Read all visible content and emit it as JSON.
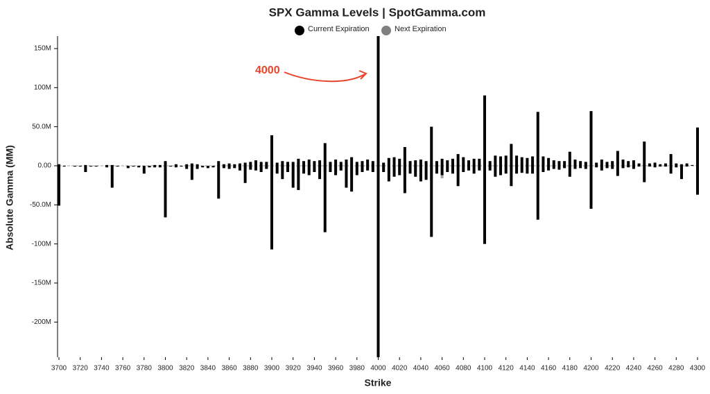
{
  "chart_data": {
    "type": "bar",
    "title": "SPX Gamma Levels | SpotGamma.com",
    "x_label": "Strike",
    "y_label": "Absolute Gamma (MM)",
    "annotation": "4000",
    "annotation_color": "#e8442c",
    "x": [
      3700,
      3705,
      3710,
      3715,
      3720,
      3725,
      3730,
      3735,
      3740,
      3745,
      3750,
      3755,
      3760,
      3765,
      3770,
      3775,
      3780,
      3785,
      3790,
      3795,
      3800,
      3805,
      3810,
      3815,
      3820,
      3825,
      3830,
      3835,
      3840,
      3845,
      3850,
      3855,
      3860,
      3865,
      3870,
      3875,
      3880,
      3885,
      3890,
      3895,
      3900,
      3905,
      3910,
      3915,
      3920,
      3925,
      3930,
      3935,
      3940,
      3945,
      3950,
      3955,
      3960,
      3965,
      3970,
      3975,
      3980,
      3985,
      3990,
      3995,
      4000,
      4005,
      4010,
      4015,
      4020,
      4025,
      4030,
      4035,
      4040,
      4045,
      4050,
      4055,
      4060,
      4065,
      4070,
      4075,
      4080,
      4085,
      4090,
      4095,
      4100,
      4105,
      4110,
      4115,
      4120,
      4125,
      4130,
      4135,
      4140,
      4145,
      4150,
      4155,
      4160,
      4165,
      4170,
      4175,
      4180,
      4185,
      4190,
      4195,
      4200,
      4205,
      4210,
      4215,
      4220,
      4225,
      4230,
      4235,
      4240,
      4245,
      4250,
      4255,
      4260,
      4265,
      4270,
      4275,
      4280,
      4285,
      4290,
      4295,
      4300
    ],
    "series": [
      {
        "name": "Current Expiration",
        "color": "#000000",
        "values": [
          2,
          0,
          0,
          0,
          0,
          1,
          0,
          0,
          0,
          1,
          1,
          0,
          0,
          0,
          0,
          0,
          0,
          0,
          1,
          1,
          6,
          0,
          2,
          0,
          2,
          3,
          2,
          0,
          0,
          0,
          6,
          2,
          3,
          2,
          3,
          4,
          5,
          7,
          5,
          5,
          39,
          4,
          6,
          5,
          5,
          9,
          6,
          8,
          6,
          7,
          29,
          5,
          8,
          5,
          8,
          11,
          5,
          6,
          8,
          6,
          166,
          4,
          10,
          11,
          9,
          24,
          6,
          7,
          8,
          6,
          50,
          6,
          9,
          7,
          9,
          15,
          11,
          7,
          9,
          9,
          90,
          6,
          13,
          12,
          13,
          28,
          13,
          11,
          10,
          12,
          69,
          12,
          10,
          7,
          6,
          6,
          18,
          8,
          6,
          5,
          70,
          4,
          8,
          5,
          6,
          19,
          8,
          6,
          7,
          3,
          31,
          3,
          4,
          2,
          3,
          15,
          3,
          2,
          3,
          1,
          49
        ],
        "negative_values": [
          -51,
          -1,
          0,
          -1,
          -1,
          -8,
          -1,
          -1,
          0,
          -2,
          -28,
          -1,
          0,
          -3,
          -1,
          -2,
          -10,
          -2,
          -2,
          -2,
          -66,
          -1,
          -2,
          -1,
          -4,
          -18,
          -4,
          -2,
          -3,
          -2,
          -42,
          -3,
          -4,
          -3,
          -6,
          -22,
          -5,
          -6,
          -8,
          -4,
          -107,
          -10,
          -17,
          -8,
          -28,
          -31,
          -10,
          -12,
          -8,
          -17,
          -85,
          -8,
          -12,
          -6,
          -28,
          -33,
          -12,
          -8,
          -6,
          -8,
          -245,
          -8,
          -20,
          -14,
          -12,
          -35,
          -10,
          -14,
          -20,
          -18,
          -91,
          -10,
          -12,
          -8,
          -10,
          -26,
          -8,
          -6,
          -10,
          -6,
          -100,
          -6,
          -14,
          -12,
          -10,
          -26,
          -10,
          -9,
          -10,
          -10,
          -69,
          -8,
          -6,
          -4,
          -5,
          -3,
          -14,
          -4,
          -3,
          -4,
          -55,
          -2,
          -6,
          -3,
          -4,
          -13,
          -3,
          -2,
          -4,
          -1,
          -21,
          -1,
          -2,
          -1,
          -1,
          -10,
          -2,
          -17,
          -1,
          0,
          -37
        ]
      },
      {
        "name": "Next Expiration",
        "color": "#a8a8a8",
        "values": [
          0,
          0,
          0,
          0,
          0,
          0,
          0,
          0,
          0,
          0,
          0,
          0,
          0,
          0,
          0,
          0,
          0,
          0,
          0,
          0,
          0,
          0,
          0,
          0,
          0,
          0,
          0,
          0,
          0,
          0,
          0,
          0,
          0,
          0,
          0,
          0,
          0,
          0,
          0,
          0,
          2,
          2,
          2,
          2,
          3,
          3,
          2,
          2,
          3,
          2,
          3,
          2,
          3,
          2,
          3,
          3,
          2,
          2,
          3,
          2,
          14,
          2,
          3,
          2,
          3,
          3,
          2,
          2,
          3,
          2,
          3,
          2,
          2,
          2,
          2,
          2,
          2,
          2,
          2,
          2,
          2,
          2,
          2,
          2,
          2,
          2,
          2,
          2,
          2,
          2,
          0,
          0,
          0,
          0,
          0,
          0,
          0,
          0,
          0,
          0,
          0,
          0,
          0,
          0,
          0,
          0,
          0,
          0,
          0,
          0,
          0,
          0,
          0,
          0,
          0,
          0,
          0,
          0,
          0,
          0,
          0
        ],
        "negative_values": [
          0,
          0,
          0,
          0,
          0,
          0,
          0,
          0,
          0,
          0,
          0,
          0,
          0,
          0,
          0,
          0,
          0,
          0,
          0,
          0,
          0,
          0,
          0,
          0,
          0,
          0,
          0,
          0,
          0,
          0,
          0,
          0,
          0,
          0,
          -2,
          -3,
          -3,
          -3,
          -4,
          -4,
          -6,
          -5,
          -6,
          -5,
          -18,
          -12,
          -8,
          -8,
          -6,
          -8,
          -8,
          -6,
          -8,
          -6,
          -22,
          -14,
          -8,
          -6,
          -5,
          -6,
          -27,
          -5,
          -8,
          -6,
          -6,
          -10,
          -6,
          -8,
          -14,
          -16,
          -20,
          -6,
          -16,
          -5,
          -5,
          -6,
          -4,
          -4,
          -4,
          -4,
          -4,
          -3,
          -3,
          -3,
          -3,
          -4,
          -3,
          -3,
          -3,
          -3,
          0,
          0,
          0,
          0,
          0,
          0,
          0,
          0,
          0,
          0,
          0,
          0,
          0,
          0,
          0,
          0,
          0,
          0,
          0,
          0,
          0,
          0,
          0,
          0,
          0,
          0,
          0,
          0,
          0,
          0,
          0
        ]
      }
    ],
    "xlim": [
      3700,
      4300
    ],
    "xticks": [
      3700,
      3720,
      3740,
      3760,
      3780,
      3800,
      3820,
      3840,
      3860,
      3880,
      3900,
      3920,
      3940,
      3960,
      3980,
      4000,
      4020,
      4040,
      4060,
      4080,
      4100,
      4120,
      4140,
      4160,
      4180,
      4200,
      4220,
      4240,
      4260,
      4280,
      4300
    ],
    "ylim": [
      -245,
      166
    ],
    "yticks": [
      {
        "value": 150,
        "label": "150M"
      },
      {
        "value": 100,
        "label": "100M"
      },
      {
        "value": 50,
        "label": "50.0M"
      },
      {
        "value": 0,
        "label": "0.00"
      },
      {
        "value": -50,
        "label": "-50.0M"
      },
      {
        "value": -100,
        "label": "-100M"
      },
      {
        "value": -150,
        "label": "-150M"
      },
      {
        "value": -200,
        "label": "-200M"
      }
    ]
  }
}
